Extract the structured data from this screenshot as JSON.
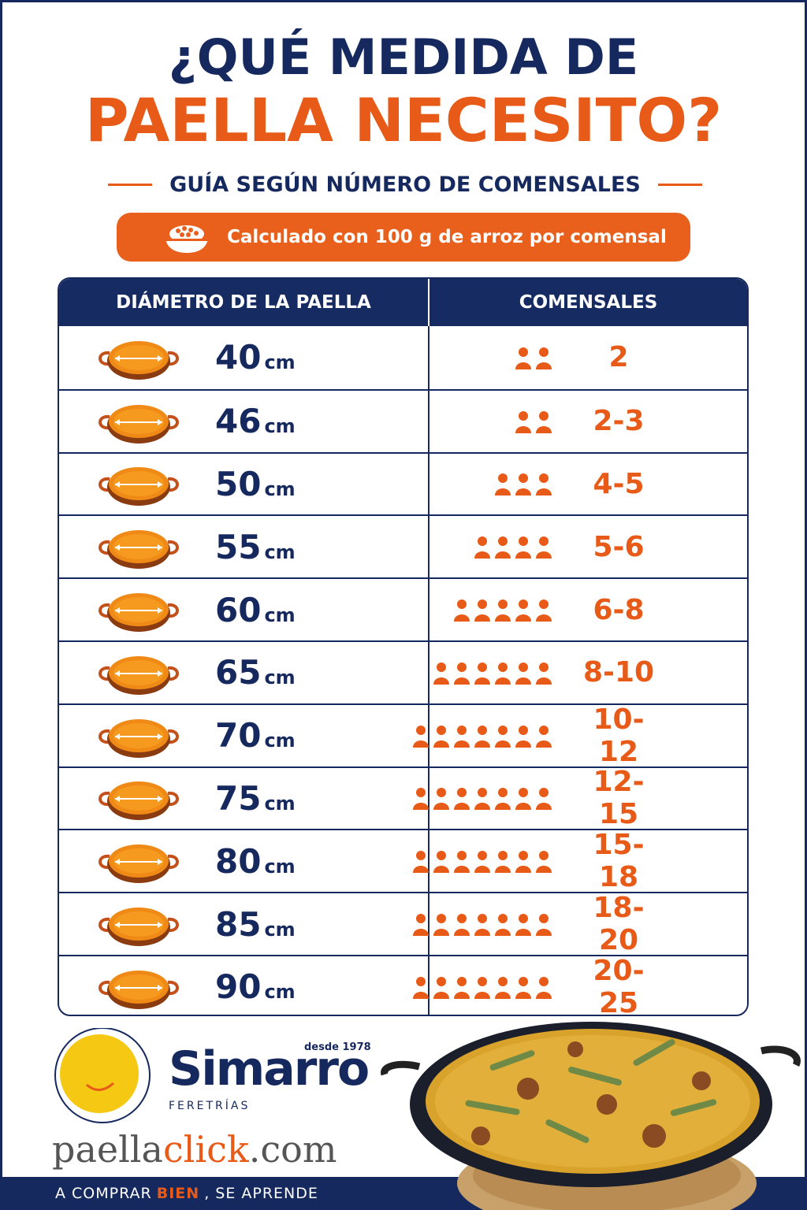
{
  "header": {
    "title_line1": "¿QUÉ MEDIDA DE",
    "title_line2": "PAELLA NECESITO?",
    "subtitle": "GUÍA SEGÚN NÚMERO DE COMENSALES",
    "note": "Calculado con 100 g de arroz por comensal",
    "note_icon": "rice-bowl-icon"
  },
  "table": {
    "col_diameter": "DIÁMETRO DE LA PAELLA",
    "col_guests": "COMENSALES",
    "rows": [
      {
        "size": "40",
        "unit": "cm",
        "people_icons": 2,
        "guests": "2"
      },
      {
        "size": "46",
        "unit": "cm",
        "people_icons": 2,
        "guests": "2-3"
      },
      {
        "size": "50",
        "unit": "cm",
        "people_icons": 3,
        "guests": "4-5"
      },
      {
        "size": "55",
        "unit": "cm",
        "people_icons": 4,
        "guests": "5-6"
      },
      {
        "size": "60",
        "unit": "cm",
        "people_icons": 5,
        "guests": "6-8"
      },
      {
        "size": "65",
        "unit": "cm",
        "people_icons": 6,
        "guests": "8-10"
      },
      {
        "size": "70",
        "unit": "cm",
        "people_icons": 7,
        "guests": "10-12"
      },
      {
        "size": "75",
        "unit": "cm",
        "people_icons": 7,
        "guests": "12-15"
      },
      {
        "size": "80",
        "unit": "cm",
        "people_icons": 7,
        "guests": "15-18"
      },
      {
        "size": "85",
        "unit": "cm",
        "people_icons": 7,
        "guests": "18-20"
      },
      {
        "size": "90",
        "unit": "cm",
        "people_icons": 7,
        "guests": "20-25"
      }
    ]
  },
  "brand": {
    "name": "Simarro",
    "since": "desde 1978",
    "tagline": "FERETRÍAS",
    "site_prefix": "paella",
    "site_accent": "click",
    "site_suffix": ".com"
  },
  "footer": {
    "part1": "A COMPRAR",
    "part2": "BIEN",
    "part3": ", SE APRENDE"
  },
  "colors": {
    "navy": "#16295f",
    "orange": "#e85a17"
  }
}
